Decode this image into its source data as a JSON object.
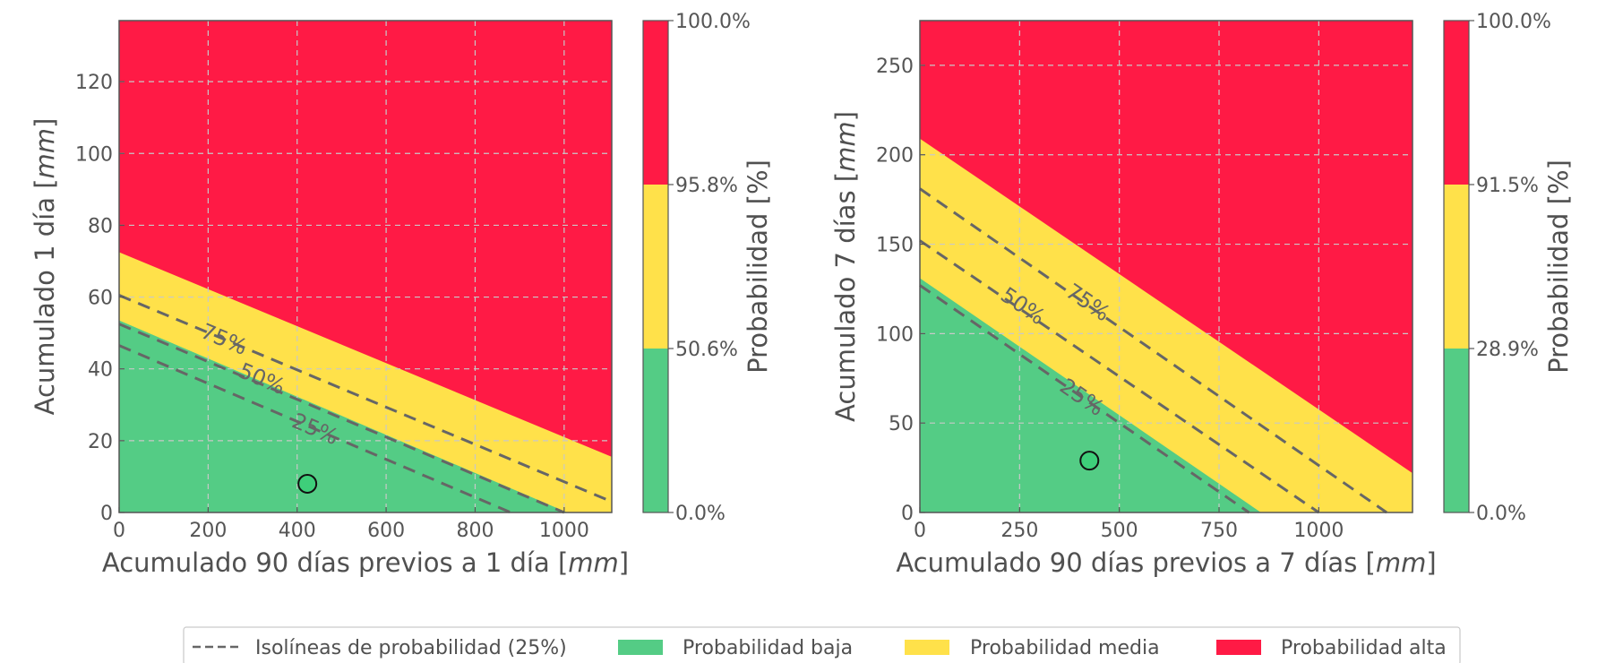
{
  "colors": {
    "low": "#54CC85",
    "mid": "#FFE14A",
    "high": "#FF1A45",
    "isoline": "#666666",
    "frame": "#555555",
    "point_fill": "#3ecf7a"
  },
  "legend": {
    "items": [
      {
        "key": "isoline",
        "label": "Isolíneas de probabilidad (25%)"
      },
      {
        "key": "low",
        "label": "Probabilidad baja"
      },
      {
        "key": "mid",
        "label": "Probabilidad media"
      },
      {
        "key": "high",
        "label": "Probabilidad alta"
      }
    ]
  },
  "chart_data": [
    {
      "type": "area",
      "xlabel": "Acumulado 90 días previos a 1 día [mm]",
      "xlabel_parts": [
        "Acumulado 90 días previos a 1 día [",
        "mm",
        "]"
      ],
      "ylabel_parts": [
        "Acumulado 1 día [",
        "mm",
        "]"
      ],
      "xlim": [
        0,
        1107
      ],
      "ylim": [
        0,
        137
      ],
      "xticks": [
        0,
        200,
        400,
        600,
        800,
        1000
      ],
      "yticks": [
        0,
        20,
        40,
        60,
        80,
        100,
        120
      ],
      "grid": true,
      "region_bounds": {
        "low_mid": [
          [
            0,
            53.5
          ],
          [
            1007,
            0
          ]
        ],
        "mid_high": [
          [
            0,
            72.5
          ],
          [
            1107,
            15.5
          ]
        ]
      },
      "isolines": [
        {
          "label": "25%",
          "points": [
            [
              0,
              46.5
            ],
            [
              880,
              0
            ]
          ],
          "label_at": [
            440,
            23
          ]
        },
        {
          "label": "50%",
          "points": [
            [
              0,
              52.5
            ],
            [
              1000,
              0
            ]
          ],
          "label_at": [
            320,
            37
          ]
        },
        {
          "label": "75%",
          "points": [
            [
              0,
              60.5
            ],
            [
              1107,
              3
            ]
          ],
          "label_at": [
            235,
            48
          ]
        }
      ],
      "point": {
        "x": 423,
        "y": 8
      },
      "colorbar": {
        "label": "Probabilidad [%]",
        "ticks": [
          "0.0%",
          "50.6%",
          "95.8%",
          "100.0%"
        ]
      }
    },
    {
      "type": "area",
      "xlabel": "Acumulado 90 días previos a 7 días [mm]",
      "xlabel_parts": [
        "Acumulado 90 días previos a 7 días [",
        "mm",
        "]"
      ],
      "ylabel_parts": [
        "Acumulado 7 días [",
        "mm",
        "]"
      ],
      "xlim": [
        0,
        1235
      ],
      "ylim": [
        0,
        275
      ],
      "xticks": [
        0,
        250,
        500,
        750,
        1000
      ],
      "yticks": [
        0,
        50,
        100,
        150,
        200,
        250
      ],
      "grid": true,
      "region_bounds": {
        "low_mid": [
          [
            0,
            131
          ],
          [
            855,
            0
          ]
        ],
        "mid_high": [
          [
            0,
            209
          ],
          [
            1235,
            22
          ]
        ]
      },
      "isolines": [
        {
          "label": "25%",
          "points": [
            [
              0,
              127
            ],
            [
              825,
              0
            ]
          ],
          "label_at": [
            405,
            64
          ]
        },
        {
          "label": "50%",
          "points": [
            [
              0,
              152
            ],
            [
              1000,
              0
            ]
          ],
          "label_at": [
            257,
            115
          ]
        },
        {
          "label": "75%",
          "points": [
            [
              0,
              181
            ],
            [
              1170,
              0
            ]
          ],
          "label_at": [
            420,
            117
          ]
        }
      ],
      "point": {
        "x": 425,
        "y": 29
      },
      "colorbar": {
        "label": "Probabilidad [%]",
        "ticks": [
          "0.0%",
          "28.9%",
          "91.5%",
          "100.0%"
        ]
      }
    }
  ]
}
